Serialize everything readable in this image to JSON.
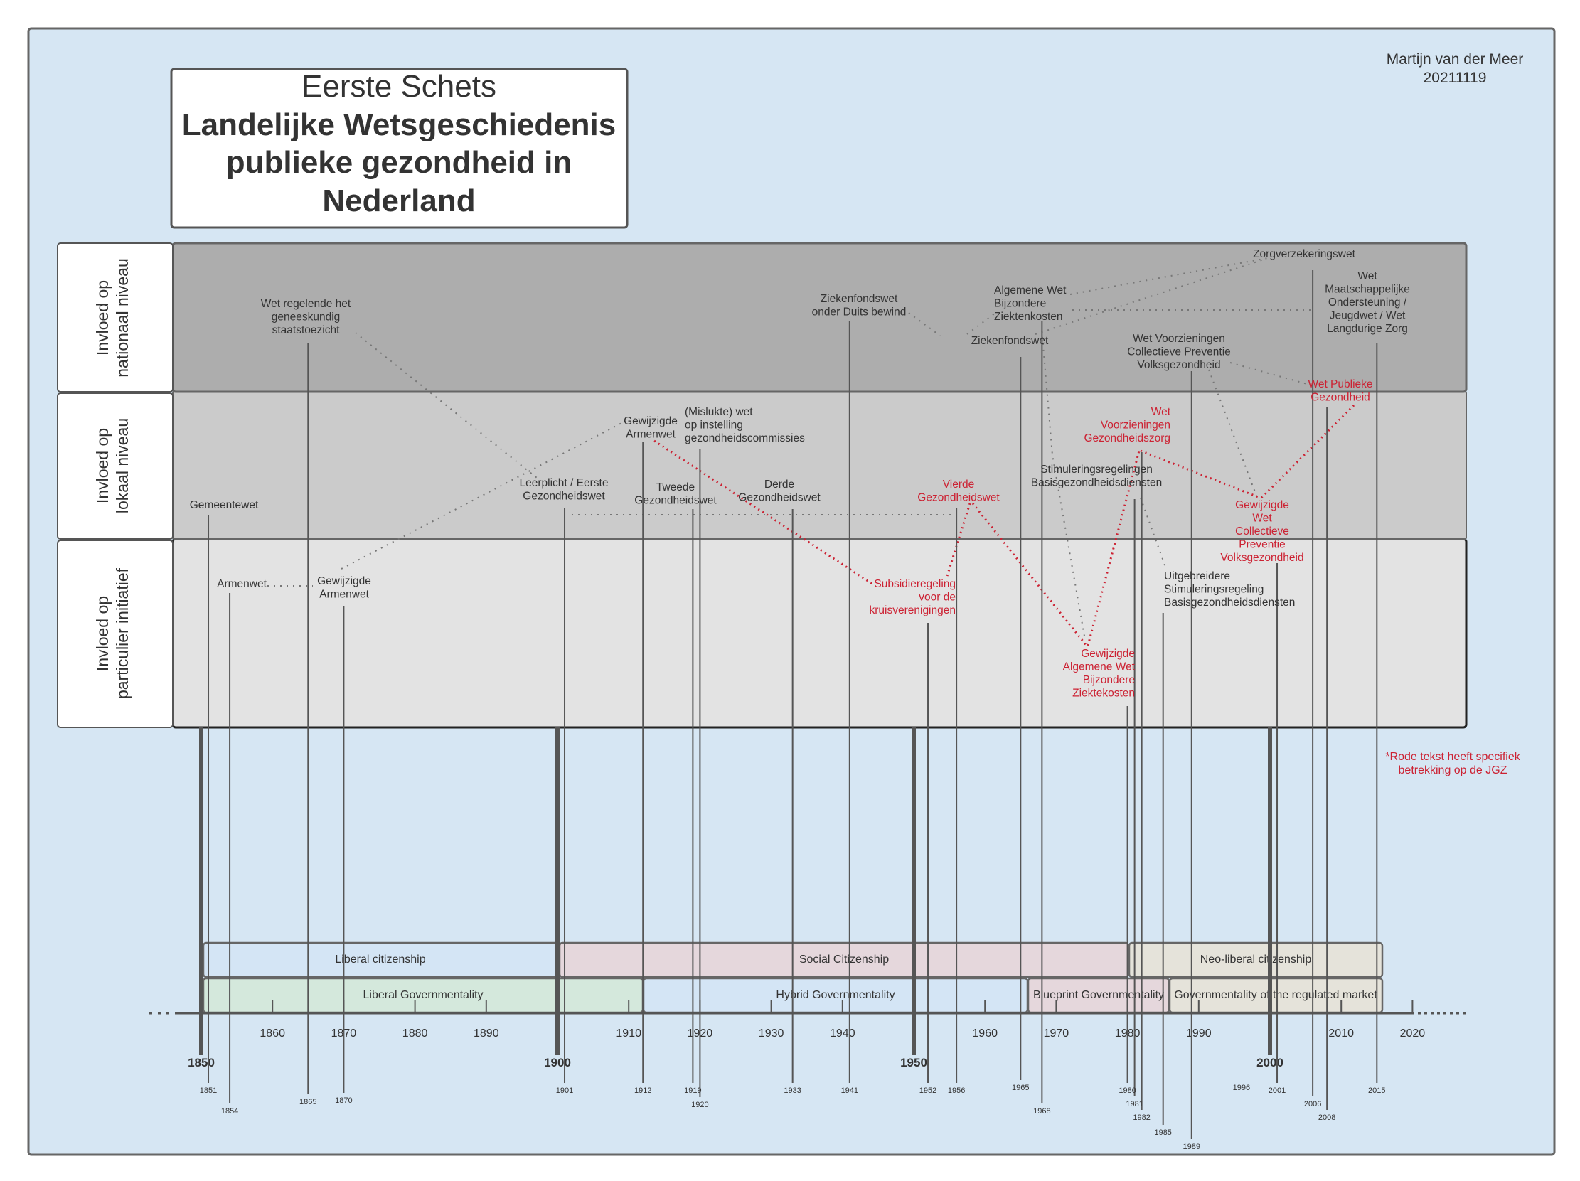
{
  "author": {
    "name": "Martijn van der Meer",
    "date": "20211119"
  },
  "title": {
    "line1": "Eerste Schets",
    "line2": "Landelijke Wetsgeschiedenis",
    "line3": "publieke gezondheid in",
    "line4": "Nederland"
  },
  "rows": [
    {
      "label_1": "Invloed op",
      "label_2": "nationaal niveau"
    },
    {
      "label_1": "Invloed op",
      "label_2": "lokaal niveau"
    },
    {
      "label_1": "Invloed op",
      "label_2": "particulier initiatief"
    }
  ],
  "footnote": {
    "line1": "*Rode tekst heeft specifiek",
    "line2": "betrekking op de JGZ"
  },
  "colors": {
    "background": "#d6e6f3",
    "national": "#adadad",
    "local": "#cbcbcb",
    "private": "#e3e3e3",
    "red": "#cc2233"
  },
  "events": [
    {
      "lines": [
        "Wet regelende het",
        "geneeskundig",
        "staatstoezicht"
      ],
      "year": "1865",
      "red": false
    },
    {
      "lines": [
        "Gemeentewet"
      ],
      "year": "1851",
      "red": false
    },
    {
      "lines": [
        "Armenwet"
      ],
      "year": "1854",
      "red": false
    },
    {
      "lines": [
        "Gewijzigde",
        "Armenwet"
      ],
      "year": "1870",
      "red": false
    },
    {
      "lines": [
        "Leerplicht / Eerste",
        "Gezondheidswet"
      ],
      "year": "1901",
      "red": false
    },
    {
      "lines": [
        "Gewijzigde",
        "Armenwet"
      ],
      "year": "1912",
      "red": false
    },
    {
      "lines": [
        "(Mislukte) wet",
        "op instelling",
        "gezondheidscommissies"
      ],
      "year": "1920",
      "red": false
    },
    {
      "lines": [
        "Tweede",
        "Gezondheidswet"
      ],
      "year": "1919",
      "red": false
    },
    {
      "lines": [
        "Derde",
        "Gezondheidswet"
      ],
      "year": "1933",
      "red": false
    },
    {
      "lines": [
        "Ziekenfondswet",
        "onder Duits bewind"
      ],
      "year": "1941",
      "red": false
    },
    {
      "lines": [
        "Subsidieregeling",
        "voor de",
        "kruisverenigingen"
      ],
      "year": "1952",
      "red": true
    },
    {
      "lines": [
        "Vierde",
        "Gezondheidswet"
      ],
      "year": "1956",
      "red": true
    },
    {
      "lines": [
        "Ziekenfondswet"
      ],
      "year": "1965",
      "red": false
    },
    {
      "lines": [
        "Algemene Wet",
        "Bijzondere",
        "Ziektenkosten"
      ],
      "year": "1968",
      "red": false
    },
    {
      "lines": [
        "Gewijzigde",
        "Algemene Wet",
        "Bijzondere",
        "Ziektekosten"
      ],
      "year": "1980",
      "red": true
    },
    {
      "lines": [
        "Stimuleringsregelingen",
        "Basisgezondheidsdiensten"
      ],
      "year": "1981",
      "red": false
    },
    {
      "lines": [
        "Wet",
        "Voorzieningen",
        "Gezondheidszorg"
      ],
      "year": "1982",
      "red": true
    },
    {
      "lines": [
        "Uitgebreidere",
        "Stimuleringsregeling",
        "Basisgezondheidsdiensten"
      ],
      "year": "1985",
      "red": false
    },
    {
      "lines": [
        "Wet Voorzieningen",
        "Collectieve Preventie",
        "Volksgezondheid"
      ],
      "year": "1989",
      "red": false
    },
    {
      "lines": [
        "Gewijzigde",
        "Wet",
        "Collectieve",
        "Preventie",
        "Volksgezondheid"
      ],
      "year": "2001",
      "red": true
    },
    {
      "lines": [
        "Zorgverzekeringswet"
      ],
      "year": "2006",
      "red": false
    },
    {
      "lines": [
        "Wet Publieke",
        "Gezondheid"
      ],
      "year": "2008",
      "red": true
    },
    {
      "lines": [
        "Wet",
        "Maatschappelijke",
        "Ondersteuning /",
        "Jeugdwet / Wet",
        "Langdurige Zorg"
      ],
      "year": "2015",
      "red": false
    }
  ],
  "extra_years": [
    "1996"
  ],
  "periods_top": [
    {
      "label": "Liberal citizenship",
      "color": "#d4e5f5"
    },
    {
      "label": "Social Citizenship",
      "color": "#e5d7dc"
    },
    {
      "label": "Neo-liberal citizenship",
      "color": "#e5e3da"
    }
  ],
  "periods_bottom": [
    {
      "label": "Liberal Governmentality",
      "color": "#d4e8dc"
    },
    {
      "label": "Hybrid Governmentality",
      "color": "#d4e5f5"
    },
    {
      "label": "Blueprint Governmentality",
      "color": "#e5d7dc"
    },
    {
      "label": "Governmentality of the regulated market",
      "color": "#e5e3da"
    }
  ],
  "decade_ticks": [
    "1860",
    "1870",
    "1880",
    "1890",
    "1910",
    "1920",
    "1930",
    "1940",
    "1960",
    "1970",
    "1980",
    "1990",
    "2010",
    "2020"
  ],
  "major_ticks": [
    "1850",
    "1900",
    "1950",
    "2000"
  ]
}
